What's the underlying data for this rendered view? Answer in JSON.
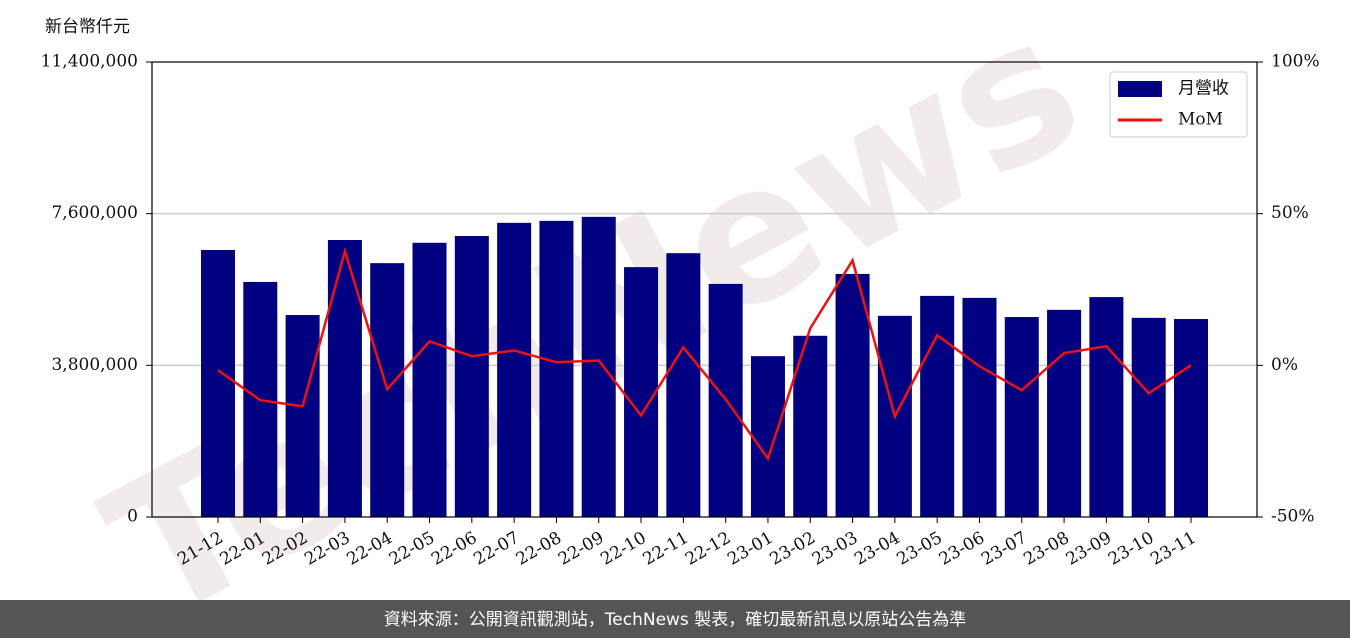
{
  "chart_data": {
    "type": "combo",
    "y_label": "新台幣仟元",
    "watermark": "TechNews",
    "footer": "資料來源：公開資訊觀測站，TechNews 製表，確切最新訊息以原站公告為準",
    "categories": [
      "21-12",
      "22-01",
      "22-02",
      "22-03",
      "22-04",
      "22-05",
      "22-06",
      "22-07",
      "22-08",
      "22-09",
      "22-10",
      "22-11",
      "22-12",
      "23-01",
      "23-02",
      "23-03",
      "23-04",
      "23-05",
      "23-06",
      "23-07",
      "23-08",
      "23-09",
      "23-10",
      "23-11"
    ],
    "series": [
      {
        "name": "月營收",
        "type": "bar",
        "color": "#000080",
        "axis": "y",
        "values": [
          6690000,
          5890000,
          5060000,
          6940000,
          6360000,
          6870000,
          7040000,
          7370000,
          7420000,
          7520000,
          6260000,
          6610000,
          5840000,
          4030000,
          4540000,
          6090000,
          5040000,
          5540000,
          5490000,
          5010000,
          5190000,
          5510000,
          4990000,
          4960000
        ]
      },
      {
        "name": "MoM",
        "type": "line",
        "color": "#ee1111",
        "axis": "y2",
        "values": [
          -1.6,
          -11.5,
          -13.5,
          37.6,
          -7.9,
          7.9,
          3.0,
          4.9,
          1.0,
          1.6,
          -16.5,
          5.9,
          -11.2,
          -30.7,
          12.2,
          34.6,
          -16.8,
          9.9,
          -0.3,
          -8.2,
          4.0,
          6.3,
          -9.2,
          0
        ]
      }
    ],
    "ylim": [
      0,
      11400000
    ],
    "yticks": [
      {
        "value": 0,
        "label": "0"
      },
      {
        "value": 3800000,
        "label": "3,800,000"
      },
      {
        "value": 7600000,
        "label": "7,600,000"
      },
      {
        "value": 11400000,
        "label": "11,400,000"
      }
    ],
    "y2lim": [
      -50,
      100
    ],
    "y2ticks": [
      {
        "value": -50,
        "label": "-50%"
      },
      {
        "value": 0,
        "label": "0%"
      },
      {
        "value": 50,
        "label": "50%"
      },
      {
        "value": 100,
        "label": "100%"
      }
    ],
    "grid": true,
    "legend": "upper right"
  }
}
